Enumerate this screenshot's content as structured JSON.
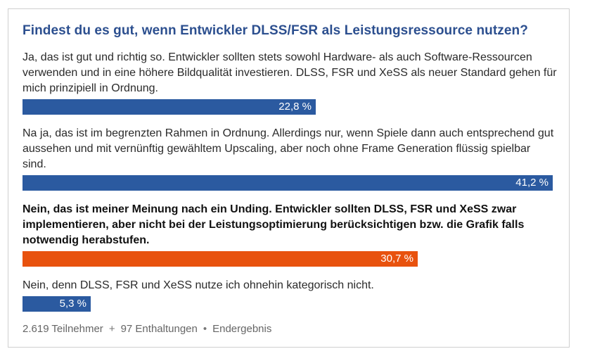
{
  "poll": {
    "question": "Findest du es gut, wenn Entwickler DLSS/FSR als Leistungsressource nutzen?",
    "answers": [
      {
        "text": "Ja, das ist gut und richtig so. Entwickler sollten stets sowohl Hardware- als auch Software-Ressourcen verwenden und in eine höhere Bildqualität investieren. DLSS, FSR und XeSS als neuer Standard gehen für mich prinzipiell in Ordnung.",
        "percent_label": "22,8 %",
        "percent": 22.8,
        "chosen": false,
        "color": "#2b5aa0"
      },
      {
        "text": "Na ja, das ist im begrenzten Rahmen in Ordnung. Allerdings nur, wenn Spiele dann auch entsprechend gut aussehen und mit vernünftig gewähltem Upscaling, aber noch ohne Frame Generation flüssig spielbar sind.",
        "percent_label": "41,2 %",
        "percent": 41.2,
        "chosen": false,
        "color": "#2b5aa0"
      },
      {
        "text": "Nein, das ist meiner Meinung nach ein Unding. Entwickler sollten DLSS, FSR und XeSS zwar implementieren, aber nicht bei der Leistungsoptimierung berücksichtigen bzw. die Grafik falls notwendig herabstufen.",
        "percent_label": "30,7 %",
        "percent": 30.7,
        "chosen": true,
        "color": "#e8520e"
      },
      {
        "text": "Nein, denn DLSS, FSR und XeSS nutze ich ohnehin kategorisch nicht.",
        "percent_label": "5,3 %",
        "percent": 5.3,
        "chosen": false,
        "color": "#2b5aa0"
      }
    ],
    "footer": {
      "participants": "2.619 Teilnehmer",
      "separator_plus": "+",
      "abstentions": "97 Enthaltungen",
      "separator_dot": "•",
      "status": "Endergebnis"
    }
  }
}
